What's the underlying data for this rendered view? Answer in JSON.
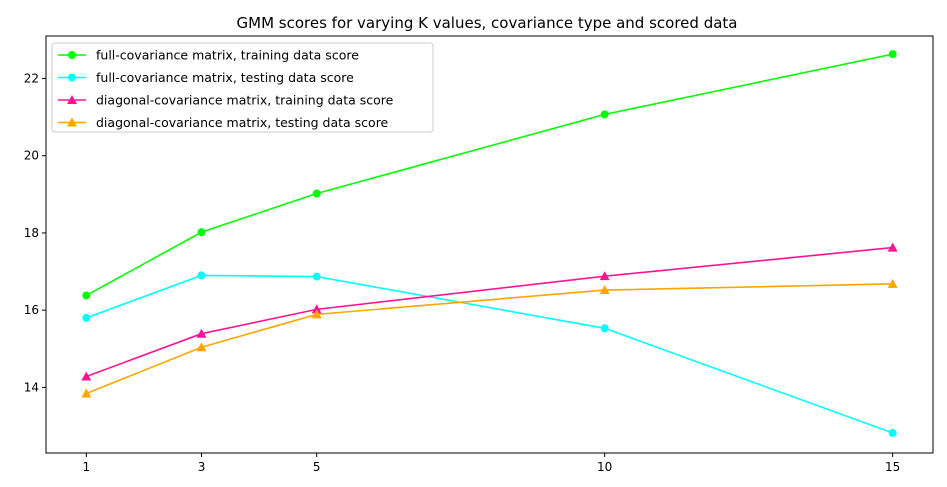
{
  "chart_data": {
    "type": "line",
    "title": "GMM scores for varying K values, covariance type and scored data",
    "xlabel": "",
    "ylabel": "",
    "x": [
      1,
      3,
      5,
      10,
      15
    ],
    "x_ticks": [
      "1",
      "3",
      "5",
      "10",
      "15"
    ],
    "xlim": [
      0.3,
      15.7
    ],
    "y_ticks": [
      "14",
      "16",
      "18",
      "20",
      "22"
    ],
    "ylim": [
      12.3,
      23.1
    ],
    "grid": false,
    "legend_position": "top-left",
    "series": [
      {
        "name": "full-covariance matrix, training data score",
        "color": "#00ff00",
        "marker": "circle",
        "values": [
          16.38,
          18.02,
          19.02,
          21.07,
          22.63
        ]
      },
      {
        "name": "full-covariance matrix, testing data score",
        "color": "#00ffff",
        "marker": "circle",
        "values": [
          15.8,
          16.9,
          16.87,
          15.53,
          12.82
        ]
      },
      {
        "name": "diagonal-covariance matrix, training data score",
        "color": "#ff1493",
        "marker": "triangle",
        "values": [
          14.28,
          15.39,
          16.02,
          16.88,
          17.62
        ]
      },
      {
        "name": "diagonal-covariance matrix, testing data score",
        "color": "#ffa500",
        "marker": "triangle",
        "values": [
          13.84,
          15.04,
          15.89,
          16.52,
          16.68
        ]
      }
    ]
  }
}
